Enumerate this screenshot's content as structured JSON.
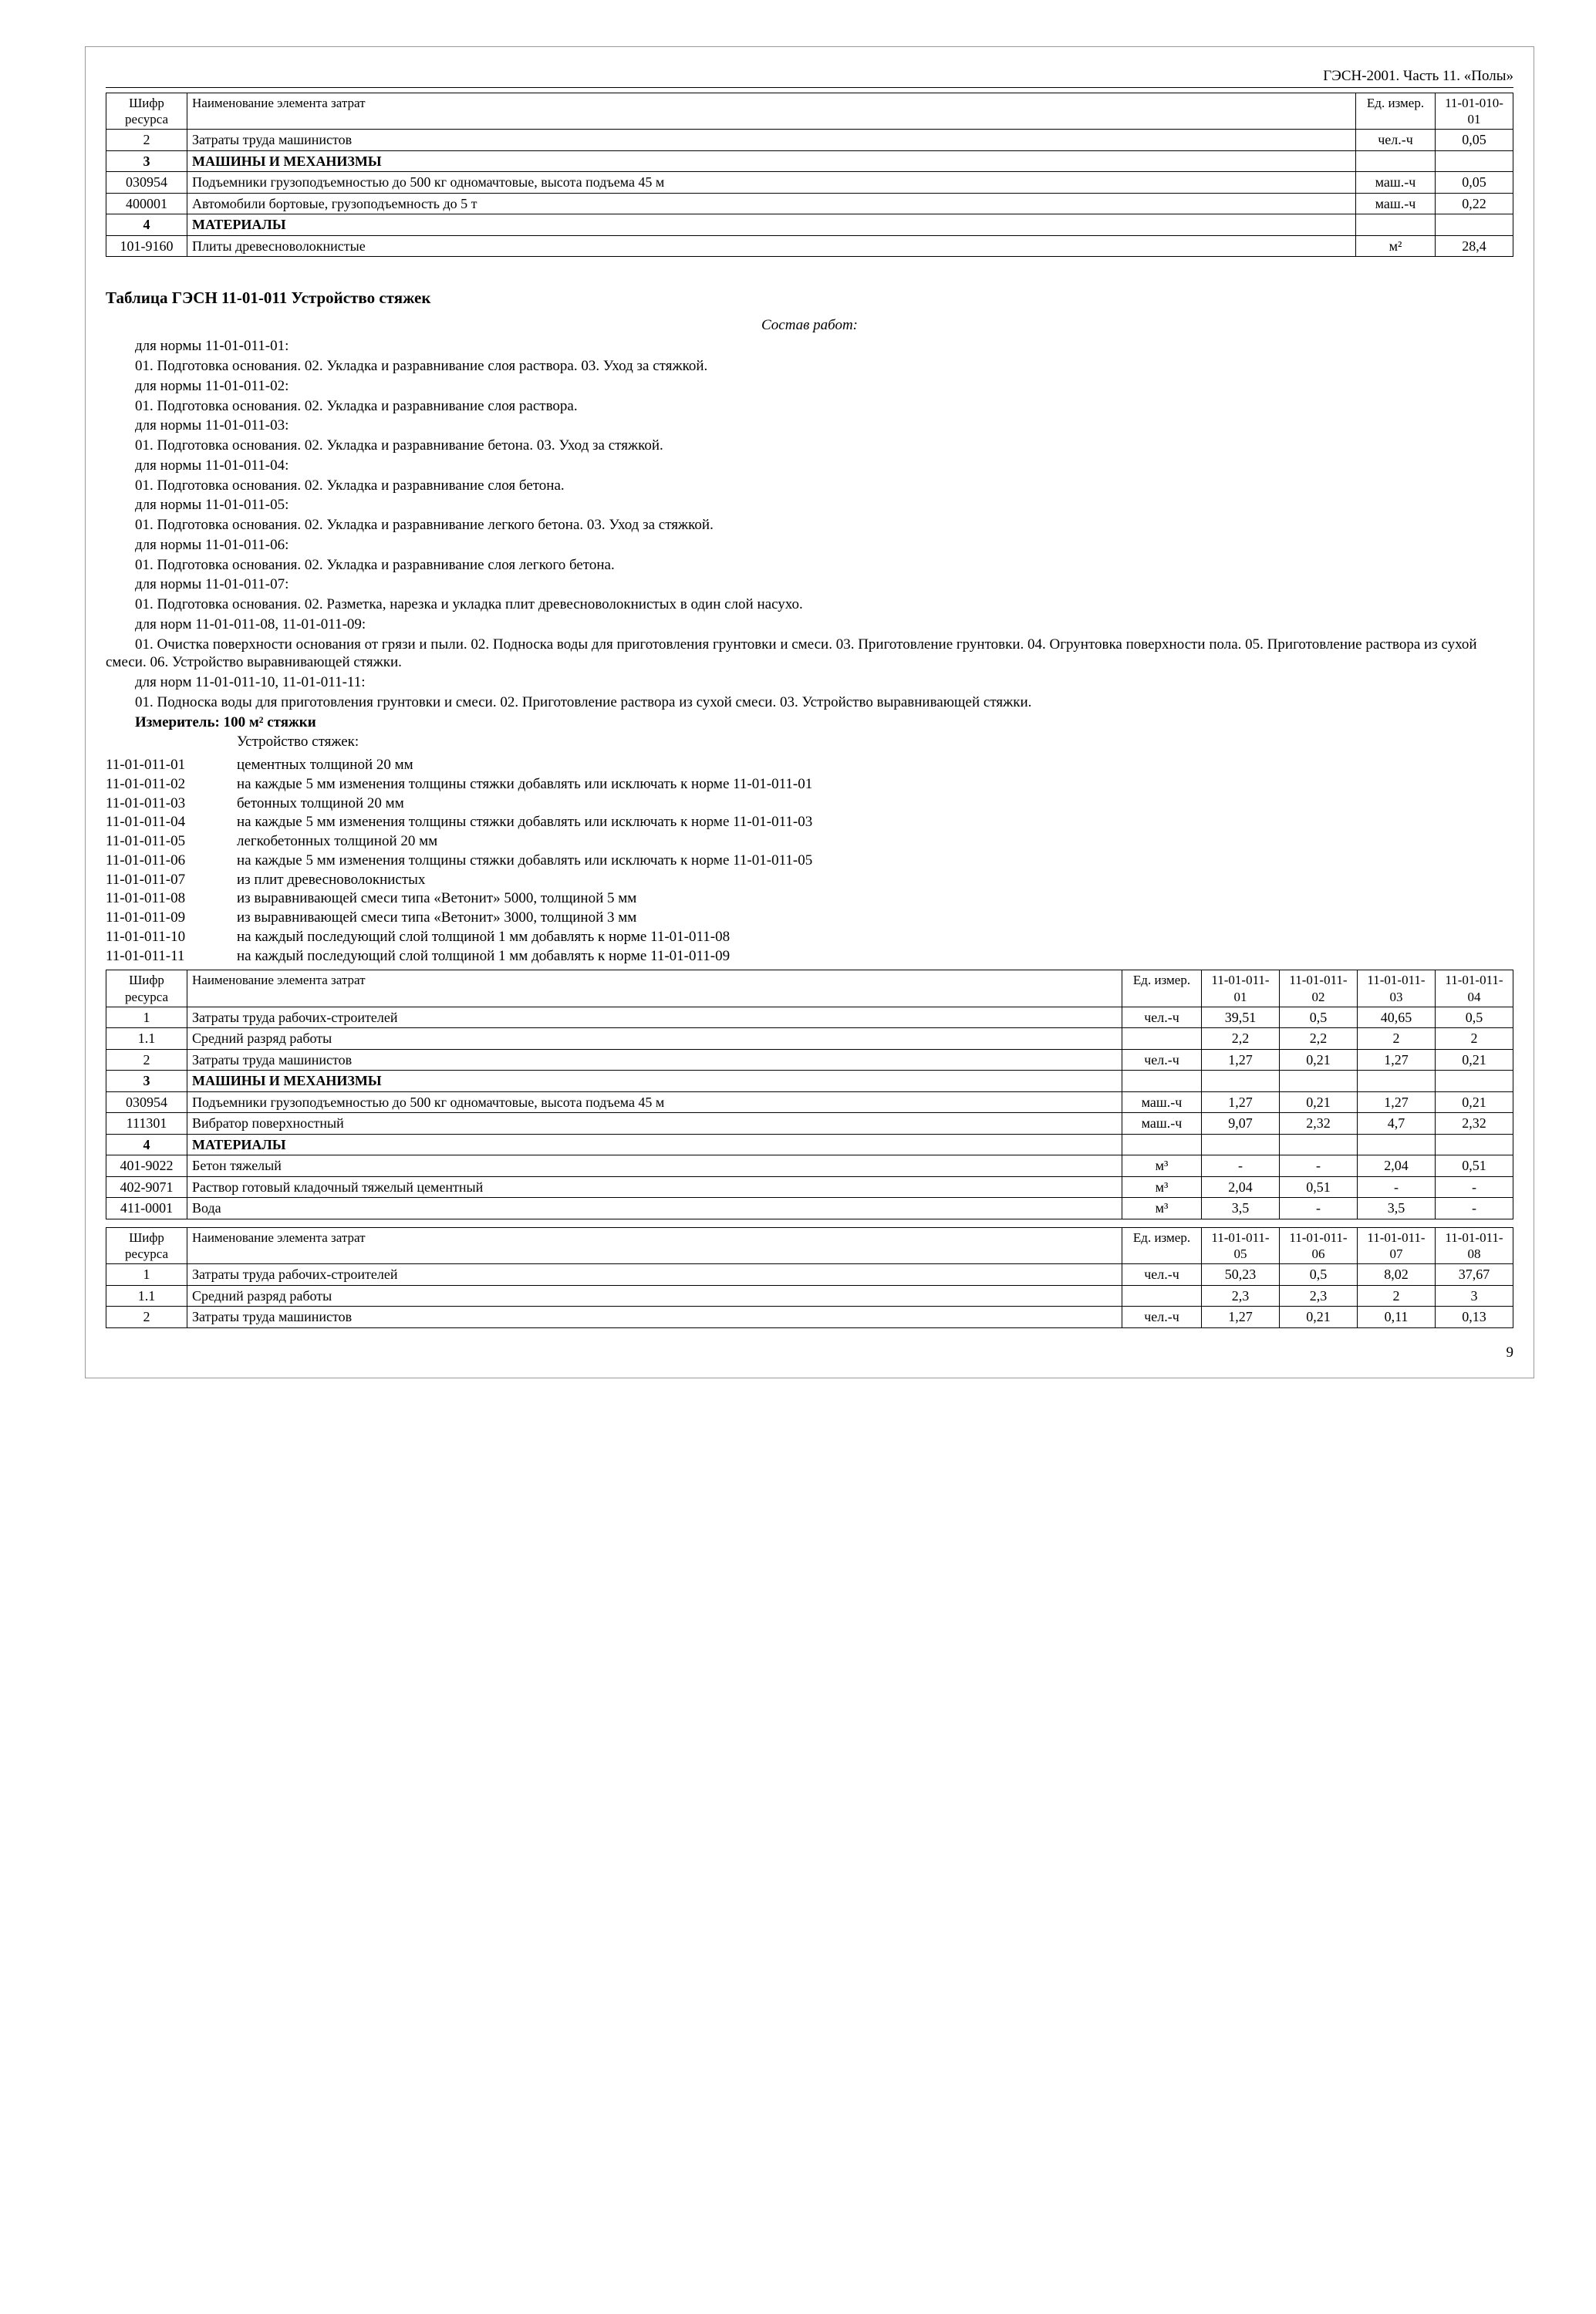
{
  "header": "ГЭСН-2001. Часть 11. «Полы»",
  "pagenum": "9",
  "table1": {
    "headers": [
      "Шифр ресурса",
      "Наименование элемента затрат",
      "Ед. измер.",
      "11-01-010-01"
    ],
    "rows": [
      {
        "code": "2",
        "name": "Затраты труда машинистов",
        "unit": "чел.-ч",
        "v1": "0,05",
        "bold": false
      },
      {
        "code": "3",
        "name": "МАШИНЫ И МЕХАНИЗМЫ",
        "unit": "",
        "v1": "",
        "bold": true
      },
      {
        "code": "030954",
        "name": "Подъемники грузоподъемностью до 500 кг одномачтовые, высота подъема 45 м",
        "unit": "маш.-ч",
        "v1": "0,05",
        "bold": false
      },
      {
        "code": "400001",
        "name": "Автомобили бортовые, грузоподъемность до 5 т",
        "unit": "маш.-ч",
        "v1": "0,22",
        "bold": false
      },
      {
        "code": "4",
        "name": "МАТЕРИАЛЫ",
        "unit": "",
        "v1": "",
        "bold": true
      },
      {
        "code": "101-9160",
        "name": "Плиты древесноволокнистые",
        "unit": "м²",
        "v1": "28,4",
        "bold": false
      }
    ]
  },
  "section_title": "Таблица ГЭСН 11-01-011 Устройство стяжек",
  "subhead": "Состав работ:",
  "work_blocks": [
    {
      "norm": "для нормы  11-01-011-01:",
      "text": "01. Подготовка основания. 02. Укладка и разравнивание слоя раствора. 03. Уход за стяжкой."
    },
    {
      "norm": "для нормы  11-01-011-02:",
      "text": "01. Подготовка основания. 02. Укладка и разравнивание слоя раствора."
    },
    {
      "norm": "для нормы  11-01-011-03:",
      "text": "01. Подготовка основания. 02. Укладка и разравнивание бетона. 03. Уход за стяжкой."
    },
    {
      "norm": "для нормы  11-01-011-04:",
      "text": "01. Подготовка основания. 02. Укладка и разравнивание слоя бетона."
    },
    {
      "norm": "для нормы  11-01-011-05:",
      "text": "01. Подготовка основания. 02. Укладка и разравнивание легкого бетона. 03. Уход за стяжкой."
    },
    {
      "norm": "для нормы  11-01-011-06:",
      "text": "01. Подготовка основания. 02. Укладка и разравнивание слоя легкого бетона."
    },
    {
      "norm": "для нормы  11-01-011-07:",
      "text": "01. Подготовка основания. 02. Разметка, нарезка и укладка плит древесноволокнистых в один слой насухо."
    }
  ],
  "work_block_8_9_norm": "для норм  11-01-011-08, 11-01-011-09:",
  "work_block_8_9_text": "01. Очистка поверхности основания от грязи и пыли. 02. Подноска воды для приготовления грунтовки и смеси. 03. Приготовление грунтовки. 04. Огрунтовка поверхности пола. 05. Приготовление раствора из сухой смеси. 06. Устройство выравнивающей стяжки.",
  "work_block_10_11_norm": "для норм  11-01-011-10, 11-01-011-11:",
  "work_block_10_11_text": "01. Подноска воды для приготовления грунтовки и смеси. 02. Приготовление раствора из сухой смеси. 03. Устройство выравнивающей стяжки.",
  "measure_line": "Измеритель: 100 м² стяжки",
  "list_title": "Устройство стяжек:",
  "items": [
    {
      "code": "11-01-011-01",
      "desc": "цементных толщиной 20 мм"
    },
    {
      "code": "11-01-011-02",
      "desc": "на каждые 5 мм изменения толщины стяжки добавлять или исключать к норме 11-01-011-01"
    },
    {
      "code": "11-01-011-03",
      "desc": "бетонных толщиной 20 мм"
    },
    {
      "code": "11-01-011-04",
      "desc": "на каждые 5 мм изменения толщины стяжки добавлять или исключать к норме 11-01-011-03"
    },
    {
      "code": "11-01-011-05",
      "desc": "легкобетонных толщиной 20 мм"
    },
    {
      "code": "11-01-011-06",
      "desc": "на каждые 5 мм изменения толщины стяжки добавлять или исключать к норме 11-01-011-05"
    },
    {
      "code": "11-01-011-07",
      "desc": "из плит древесноволокнистых"
    },
    {
      "code": "11-01-011-08",
      "desc": "из выравнивающей смеси типа «Ветонит» 5000, толщиной 5 мм"
    },
    {
      "code": "11-01-011-09",
      "desc": "из выравнивающей смеси типа «Ветонит» 3000, толщиной 3 мм"
    },
    {
      "code": "11-01-011-10",
      "desc": "на каждый последующий слой толщиной 1 мм добавлять к норме 11-01-011-08"
    },
    {
      "code": "11-01-011-11",
      "desc": "на каждый последующий слой толщиной 1 мм добавлять к норме 11-01-011-09"
    }
  ],
  "table2": {
    "headers": [
      "Шифр ресурса",
      "Наименование элемента затрат",
      "Ед. измер.",
      "11-01-011-01",
      "11-01-011-02",
      "11-01-011-03",
      "11-01-011-04"
    ],
    "rows": [
      {
        "code": "1",
        "name": "Затраты труда рабочих-строителей",
        "unit": "чел.-ч",
        "v": [
          "39,51",
          "0,5",
          "40,65",
          "0,5"
        ],
        "bold": false
      },
      {
        "code": "1.1",
        "name": "Средний разряд работы",
        "unit": "",
        "v": [
          "2,2",
          "2,2",
          "2",
          "2"
        ],
        "bold": false
      },
      {
        "code": "2",
        "name": "Затраты труда машинистов",
        "unit": "чел.-ч",
        "v": [
          "1,27",
          "0,21",
          "1,27",
          "0,21"
        ],
        "bold": false
      },
      {
        "code": "3",
        "name": "МАШИНЫ И МЕХАНИЗМЫ",
        "unit": "",
        "v": [
          "",
          "",
          "",
          ""
        ],
        "bold": true
      },
      {
        "code": "030954",
        "name": "Подъемники грузоподъемностью до 500 кг одномачтовые, высота подъема 45 м",
        "unit": "маш.-ч",
        "v": [
          "1,27",
          "0,21",
          "1,27",
          "0,21"
        ],
        "bold": false
      },
      {
        "code": "111301",
        "name": "Вибратор поверхностный",
        "unit": "маш.-ч",
        "v": [
          "9,07",
          "2,32",
          "4,7",
          "2,32"
        ],
        "bold": false
      },
      {
        "code": "4",
        "name": "МАТЕРИАЛЫ",
        "unit": "",
        "v": [
          "",
          "",
          "",
          ""
        ],
        "bold": true
      },
      {
        "code": "401-9022",
        "name": "Бетон тяжелый",
        "unit": "м³",
        "v": [
          "-",
          "-",
          "2,04",
          "0,51"
        ],
        "bold": false
      },
      {
        "code": "402-9071",
        "name": "Раствор готовый кладочный тяжелый цементный",
        "unit": "м³",
        "v": [
          "2,04",
          "0,51",
          "-",
          "-"
        ],
        "bold": false
      },
      {
        "code": "411-0001",
        "name": "Вода",
        "unit": "м³",
        "v": [
          "3,5",
          "-",
          "3,5",
          "-"
        ],
        "bold": false
      }
    ]
  },
  "table3": {
    "headers": [
      "Шифр ресурса",
      "Наименование элемента затрат",
      "Ед. измер.",
      "11-01-011-05",
      "11-01-011-06",
      "11-01-011-07",
      "11-01-011-08"
    ],
    "rows": [
      {
        "code": "1",
        "name": "Затраты труда рабочих-строителей",
        "unit": "чел.-ч",
        "v": [
          "50,23",
          "0,5",
          "8,02",
          "37,67"
        ],
        "bold": false
      },
      {
        "code": "1.1",
        "name": "Средний разряд работы",
        "unit": "",
        "v": [
          "2,3",
          "2,3",
          "2",
          "3"
        ],
        "bold": false
      },
      {
        "code": "2",
        "name": "Затраты труда машинистов",
        "unit": "чел.-ч",
        "v": [
          "1,27",
          "0,21",
          "0,11",
          "0,13"
        ],
        "bold": false
      }
    ]
  }
}
